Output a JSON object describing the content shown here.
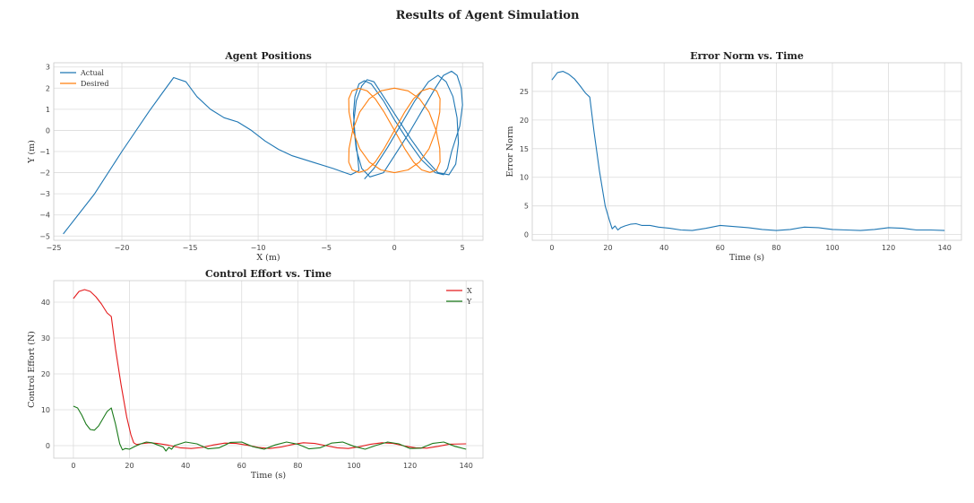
{
  "suptitle": "Results of Agent Simulation",
  "chart_data": [
    {
      "type": "line",
      "title": "Agent Positions",
      "xlabel": "X (m)",
      "ylabel": "Y (m)",
      "xlim": [
        -25,
        6.5
      ],
      "ylim": [
        -5.2,
        3.2
      ],
      "xticks": [
        -25,
        -20,
        -15,
        -10,
        -5,
        0,
        5
      ],
      "xtick_labels": [
        "−25",
        "−20",
        "−15",
        "−10",
        "−5",
        "0",
        "5"
      ],
      "yticks": [
        -5,
        -4,
        -3,
        -2,
        -1,
        0,
        1,
        2,
        3
      ],
      "ytick_labels": [
        "−5",
        "−4",
        "−3",
        "−2",
        "−1",
        "0",
        "1",
        "2",
        "3"
      ],
      "grid": true,
      "legend_placement": "upper-left",
      "series": [
        {
          "name": "Actual",
          "color": "#1f77b4",
          "x": [
            -24.3,
            -22,
            -20,
            -18,
            -17,
            -16.2,
            -15.3,
            -14.5,
            -13.5,
            -12.5,
            -11.5,
            -10.5,
            -9.5,
            -8.5,
            -7.5,
            -6,
            -4.5,
            -3.2,
            -2.6,
            -2.7,
            -2.9,
            -3.0,
            -2.9,
            -2.6,
            -2.2,
            -1.7,
            -0.8,
            0,
            1,
            2,
            3,
            3.6,
            3.9,
            4.2,
            4.8,
            5.0,
            4.9,
            4.6,
            4.2,
            3.6,
            3.0,
            2.0,
            1.0,
            0.0,
            -0.8,
            -1.8,
            -2.4,
            -2.8,
            -3.0,
            -2.8,
            -2.4,
            -2.0,
            -1.5,
            -0.8,
            0.2,
            1.2,
            2.2,
            3.2,
            4.0,
            4.5,
            4.7,
            4.6,
            4.3,
            3.8,
            3.2,
            2.5,
            1.5,
            0.5,
            -0.5,
            -1.5,
            -2.2
          ],
          "y": [
            -4.9,
            -3.0,
            -1.0,
            0.9,
            1.8,
            2.5,
            2.3,
            1.6,
            1.0,
            0.6,
            0.4,
            0.0,
            -0.5,
            -0.9,
            -1.2,
            -1.5,
            -1.8,
            -2.1,
            -1.9,
            -1.2,
            -0.2,
            0.8,
            1.6,
            2.2,
            2.35,
            2.2,
            1.4,
            0.5,
            -0.5,
            -1.4,
            -2.0,
            -2.1,
            -1.8,
            -1.0,
            0.2,
            1.2,
            2.0,
            2.6,
            2.8,
            2.6,
            2.0,
            0.9,
            -0.2,
            -1.2,
            -2.0,
            -2.2,
            -1.8,
            -0.9,
            0.3,
            1.4,
            2.1,
            2.4,
            2.3,
            1.6,
            0.6,
            -0.4,
            -1.3,
            -2.0,
            -2.1,
            -1.6,
            -0.6,
            0.6,
            1.6,
            2.3,
            2.6,
            2.3,
            1.4,
            0.3,
            -0.8,
            -1.8,
            -2.3
          ]
        },
        {
          "name": "Desired",
          "color": "#ff7f0e",
          "x": [
            0.0,
            0.76,
            1.41,
            2.0,
            2.61,
            3.1,
            3.35,
            3.33,
            3.06,
            2.54,
            1.84,
            1.0,
            0.0,
            -1.0,
            -1.84,
            -2.54,
            -3.06,
            -3.33,
            -3.35,
            -3.1,
            -2.61,
            -2.0,
            -1.41,
            -0.76,
            0.0,
            0.76,
            1.41,
            2.0,
            2.61,
            3.1,
            3.35,
            3.33,
            3.06,
            2.54,
            1.84,
            1.0,
            0.0,
            -1.0,
            -1.84,
            -2.54,
            -3.06,
            -3.33,
            -3.35,
            -3.1,
            -2.61,
            -2.0,
            -1.41,
            -0.76,
            0.0
          ],
          "y": [
            0.0,
            0.87,
            1.5,
            1.87,
            1.99,
            1.87,
            1.5,
            0.87,
            0.0,
            -0.87,
            -1.5,
            -1.87,
            -2.0,
            -1.87,
            -1.5,
            -0.87,
            0.0,
            0.87,
            1.5,
            1.87,
            1.99,
            1.87,
            1.5,
            0.87,
            0.0,
            -0.87,
            -1.5,
            -1.87,
            -1.99,
            -1.87,
            -1.5,
            -0.87,
            0.0,
            0.87,
            1.5,
            1.87,
            2.0,
            1.87,
            1.5,
            0.87,
            0.0,
            -0.87,
            -1.5,
            -1.87,
            -1.99,
            -1.87,
            -1.5,
            -0.87,
            0.0
          ]
        }
      ]
    },
    {
      "type": "line",
      "title": "Error Norm vs. Time",
      "xlabel": "Time (s)",
      "ylabel": "Error Norm",
      "xlim": [
        -7,
        146
      ],
      "ylim": [
        -1,
        30
      ],
      "xticks": [
        0,
        20,
        40,
        60,
        80,
        100,
        120,
        140
      ],
      "xtick_labels": [
        "0",
        "20",
        "40",
        "60",
        "80",
        "100",
        "120",
        "140"
      ],
      "yticks": [
        0,
        5,
        10,
        15,
        20,
        25
      ],
      "ytick_labels": [
        "0",
        "5",
        "10",
        "15",
        "20",
        "25"
      ],
      "grid": true,
      "series": [
        {
          "color": "#1f77b4",
          "x": [
            0,
            2,
            4,
            6,
            8,
            10,
            12,
            13.5,
            15,
            17,
            19,
            20.5,
            21.5,
            22.5,
            23.5,
            24.5,
            26,
            28,
            30,
            32,
            35,
            38,
            42,
            46,
            50,
            55,
            60,
            65,
            70,
            75,
            80,
            85,
            90,
            95,
            100,
            105,
            110,
            115,
            120,
            125,
            130,
            135,
            140
          ],
          "y": [
            27,
            28.3,
            28.5,
            28,
            27.2,
            26,
            24.7,
            24,
            18,
            11,
            5,
            2.5,
            1.0,
            1.5,
            0.8,
            1.2,
            1.5,
            1.8,
            1.9,
            1.6,
            1.6,
            1.3,
            1.1,
            0.8,
            0.7,
            1.1,
            1.6,
            1.4,
            1.2,
            0.9,
            0.7,
            0.9,
            1.3,
            1.2,
            0.9,
            0.8,
            0.7,
            0.9,
            1.2,
            1.1,
            0.8,
            0.8,
            0.7
          ]
        }
      ]
    },
    {
      "type": "line",
      "title": "Control Effort vs. Time",
      "xlabel": "Time (s)",
      "ylabel": "Control Effort (N)",
      "xlim": [
        -7,
        146
      ],
      "ylim": [
        -3.5,
        46
      ],
      "xticks": [
        0,
        20,
        40,
        60,
        80,
        100,
        120,
        140
      ],
      "xtick_labels": [
        "0",
        "20",
        "40",
        "60",
        "80",
        "100",
        "120",
        "140"
      ],
      "yticks": [
        0,
        10,
        20,
        30,
        40
      ],
      "ytick_labels": [
        "0",
        "10",
        "20",
        "30",
        "40"
      ],
      "grid": true,
      "legend_placement": "upper-right",
      "series": [
        {
          "name": "X",
          "color": "#e41a1c",
          "x": [
            0,
            2,
            4,
            6,
            8,
            10,
            12,
            13.5,
            15,
            17,
            19,
            20.5,
            21.5,
            22.5,
            24,
            27,
            30,
            34,
            38,
            42,
            46,
            50,
            54,
            58,
            62,
            66,
            70,
            74,
            78,
            82,
            86,
            90,
            94,
            98,
            102,
            106,
            110,
            114,
            118,
            122,
            126,
            130,
            134,
            140
          ],
          "y": [
            41,
            43,
            43.5,
            43,
            41.5,
            39.5,
            37,
            36,
            27,
            17,
            8,
            3,
            0.8,
            0.3,
            0.5,
            0.8,
            0.6,
            0.1,
            -0.6,
            -0.8,
            -0.5,
            0.2,
            0.7,
            0.6,
            0.1,
            -0.5,
            -0.8,
            -0.4,
            0.3,
            0.8,
            0.6,
            0,
            -0.6,
            -0.8,
            -0.3,
            0.4,
            0.8,
            0.6,
            -0.1,
            -0.6,
            -0.7,
            -0.2,
            0.4,
            0.5
          ]
        },
        {
          "name": "Y",
          "color": "#1a7a1a",
          "x": [
            0,
            1.5,
            3,
            4.5,
            6,
            7.5,
            9,
            10.5,
            12,
            13.5,
            15,
            16.5,
            17.5,
            18.5,
            20,
            22,
            24,
            26,
            28,
            30,
            32,
            33,
            34,
            35,
            36,
            40,
            44,
            48,
            52,
            56,
            60,
            64,
            68,
            72,
            76,
            80,
            84,
            88,
            92,
            96,
            100,
            104,
            108,
            112,
            116,
            120,
            124,
            128,
            132,
            136,
            140
          ],
          "y": [
            11,
            10.5,
            8.5,
            6,
            4.5,
            4.3,
            5.5,
            7.5,
            9.5,
            10.5,
            6,
            0.5,
            -1.2,
            -0.8,
            -1,
            -0.2,
            0.5,
            1.0,
            0.8,
            0.2,
            -0.4,
            -1.5,
            -0.5,
            -1,
            0,
            1,
            0.5,
            -0.9,
            -0.6,
            0.9,
            1.0,
            -0.3,
            -1,
            0.2,
            1.0,
            0.4,
            -0.9,
            -0.6,
            0.7,
            1.0,
            -0.2,
            -1,
            0.1,
            1.0,
            0.5,
            -0.8,
            -0.7,
            0.6,
            1.0,
            -0.2,
            -1
          ]
        }
      ]
    }
  ]
}
